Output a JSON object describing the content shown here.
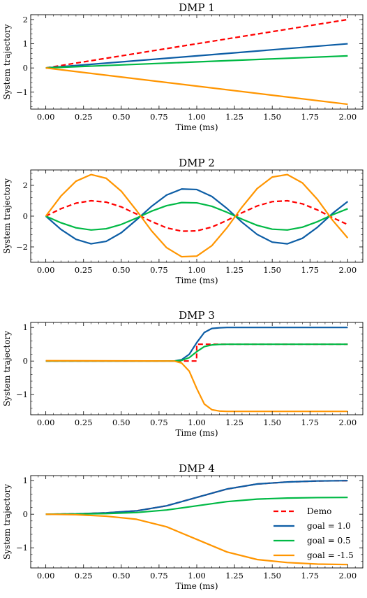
{
  "chart_data": [
    {
      "type": "line",
      "title": "DMP 1",
      "xlabel": "Time (ms)",
      "ylabel": "System trajectory",
      "xlim": [
        -0.1,
        2.1
      ],
      "ylim": [
        -1.7,
        2.2
      ],
      "xticks": [
        "0.00",
        "0.25",
        "0.50",
        "0.75",
        "1.00",
        "1.25",
        "1.50",
        "1.75",
        "2.00"
      ],
      "yticks": [
        "2",
        "1",
        "0",
        "−1"
      ],
      "series": [
        {
          "name": "Demo",
          "color": "#ff0000",
          "dash": true,
          "x": [
            0,
            0.5,
            1.0,
            1.5,
            2.0
          ],
          "y": [
            0,
            0.5,
            1.0,
            1.5,
            2.0
          ]
        },
        {
          "name": "goal = 1.0",
          "color": "#0C5DA5",
          "dash": false,
          "x": [
            0,
            0.5,
            1.0,
            1.5,
            2.0
          ],
          "y": [
            0,
            0.25,
            0.5,
            0.75,
            1.0
          ]
        },
        {
          "name": "goal = 0.5",
          "color": "#00B945",
          "dash": false,
          "x": [
            0,
            0.5,
            1.0,
            1.5,
            2.0
          ],
          "y": [
            0,
            0.125,
            0.25,
            0.375,
            0.5
          ]
        },
        {
          "name": "goal = -1.5",
          "color": "#FF9500",
          "dash": false,
          "x": [
            0,
            0.5,
            1.0,
            1.5,
            2.0
          ],
          "y": [
            0,
            -0.375,
            -0.75,
            -1.125,
            -1.5
          ]
        }
      ]
    },
    {
      "type": "line",
      "title": "DMP 2",
      "xlabel": "Time (ms)",
      "ylabel": "System trajectory",
      "xlim": [
        -0.1,
        2.1
      ],
      "ylim": [
        -3.0,
        3.0
      ],
      "xticks": [
        "0.00",
        "0.25",
        "0.50",
        "0.75",
        "1.00",
        "1.25",
        "1.50",
        "1.75",
        "2.00"
      ],
      "yticks": [
        "2",
        "0",
        "−2"
      ],
      "series": [
        {
          "name": "Demo",
          "color": "#ff0000",
          "dash": true,
          "x": [
            0,
            0.1,
            0.2,
            0.3,
            0.4,
            0.5,
            0.6,
            0.7,
            0.8,
            0.9,
            1.0,
            1.1,
            1.2,
            1.3,
            1.4,
            1.5,
            1.6,
            1.7,
            1.8,
            1.9,
            2.0
          ],
          "y": [
            0,
            0.48,
            0.84,
            1.0,
            0.91,
            0.6,
            0.14,
            -0.35,
            -0.76,
            -0.98,
            -0.96,
            -0.71,
            -0.28,
            0.22,
            0.66,
            0.94,
            1.0,
            0.8,
            0.4,
            -0.1,
            -0.55
          ]
        },
        {
          "name": "goal = 1.0",
          "color": "#0C5DA5",
          "dash": false,
          "x": [
            0,
            0.1,
            0.2,
            0.3,
            0.4,
            0.5,
            0.6,
            0.7,
            0.8,
            0.9,
            1.0,
            1.1,
            1.2,
            1.3,
            1.4,
            1.5,
            1.6,
            1.7,
            1.8,
            1.9,
            2.0
          ],
          "y": [
            0,
            -0.86,
            -1.51,
            -1.8,
            -1.64,
            -1.08,
            -0.25,
            0.63,
            1.37,
            1.76,
            1.73,
            1.28,
            0.5,
            -0.4,
            -1.19,
            -1.69,
            -1.8,
            -1.44,
            -0.72,
            0.18,
            0.95
          ]
        },
        {
          "name": "goal = 0.5",
          "color": "#00B945",
          "dash": false,
          "x": [
            0,
            0.1,
            0.2,
            0.3,
            0.4,
            0.5,
            0.6,
            0.7,
            0.8,
            0.9,
            1.0,
            1.1,
            1.2,
            1.3,
            1.4,
            1.5,
            1.6,
            1.7,
            1.8,
            1.9,
            2.0
          ],
          "y": [
            0,
            -0.43,
            -0.76,
            -0.9,
            -0.82,
            -0.54,
            -0.13,
            0.32,
            0.68,
            0.88,
            0.86,
            0.64,
            0.25,
            -0.2,
            -0.6,
            -0.85,
            -0.9,
            -0.72,
            -0.36,
            0.09,
            0.48
          ]
        },
        {
          "name": "goal = -1.5",
          "color": "#FF9500",
          "dash": false,
          "x": [
            0,
            0.1,
            0.2,
            0.3,
            0.4,
            0.5,
            0.6,
            0.7,
            0.8,
            0.9,
            1.0,
            1.1,
            1.2,
            1.3,
            1.4,
            1.5,
            1.6,
            1.7,
            1.8,
            1.9,
            2.0
          ],
          "y": [
            0,
            1.3,
            2.27,
            2.7,
            2.46,
            1.62,
            0.38,
            -0.95,
            -2.05,
            -2.64,
            -2.6,
            -1.92,
            -0.76,
            0.59,
            1.79,
            2.54,
            2.7,
            2.16,
            1.08,
            -0.27,
            -1.42
          ]
        }
      ]
    },
    {
      "type": "line",
      "title": "DMP 3",
      "xlabel": "Time (ms)",
      "ylabel": "System trajectory",
      "xlim": [
        -0.1,
        2.1
      ],
      "ylim": [
        -1.6,
        1.15
      ],
      "xticks": [
        "0.00",
        "0.25",
        "0.50",
        "0.75",
        "1.00",
        "1.25",
        "1.50",
        "1.75",
        "2.00"
      ],
      "yticks": [
        "1",
        "0",
        "−1"
      ],
      "series": [
        {
          "name": "Demo",
          "color": "#ff0000",
          "dash": true,
          "x": [
            0,
            0.999,
            1.0,
            2.0
          ],
          "y": [
            0,
            0,
            0.5,
            0.5
          ]
        },
        {
          "name": "goal = 1.0",
          "color": "#0C5DA5",
          "dash": false,
          "x": [
            0,
            0.85,
            0.9,
            0.95,
            1.0,
            1.05,
            1.1,
            1.15,
            1.2,
            1.3,
            1.5,
            2.0
          ],
          "y": [
            0,
            0.0,
            0.04,
            0.2,
            0.55,
            0.85,
            0.97,
            0.99,
            1.0,
            1.0,
            1.0,
            1.0
          ]
        },
        {
          "name": "goal = 0.5",
          "color": "#00B945",
          "dash": false,
          "x": [
            0,
            0.85,
            0.9,
            0.95,
            1.0,
            1.05,
            1.1,
            1.15,
            1.2,
            1.3,
            1.5,
            2.0
          ],
          "y": [
            0,
            0.0,
            0.02,
            0.1,
            0.28,
            0.43,
            0.48,
            0.495,
            0.5,
            0.5,
            0.5,
            0.5
          ]
        },
        {
          "name": "goal = -1.5",
          "color": "#FF9500",
          "dash": false,
          "x": [
            0,
            0.85,
            0.9,
            0.95,
            1.0,
            1.05,
            1.1,
            1.15,
            1.2,
            1.3,
            1.5,
            2.0
          ],
          "y": [
            0.01,
            0.0,
            -0.06,
            -0.3,
            -0.82,
            -1.28,
            -1.45,
            -1.49,
            -1.5,
            -1.5,
            -1.5,
            -1.5
          ]
        }
      ]
    },
    {
      "type": "line",
      "title": "DMP 4",
      "xlabel": "Time (ms)",
      "ylabel": "System trajectory",
      "xlim": [
        -0.1,
        2.1
      ],
      "ylim": [
        -1.6,
        1.15
      ],
      "xticks": [
        "0.00",
        "0.25",
        "0.50",
        "0.75",
        "1.00",
        "1.25",
        "1.50",
        "1.75",
        "2.00"
      ],
      "yticks": [
        "1",
        "0",
        "−1"
      ],
      "legend": "lower right",
      "series": [
        {
          "name": "Demo",
          "color": "#ff0000",
          "dash": true,
          "x": [
            0,
            0.2,
            0.4,
            0.6,
            0.8,
            1.0,
            1.2,
            1.4,
            1.6,
            1.8,
            2.0
          ],
          "y": [
            0,
            0.01,
            0.04,
            0.1,
            0.25,
            0.5,
            0.75,
            0.9,
            0.96,
            0.99,
            1.0
          ]
        },
        {
          "name": "goal = 1.0",
          "color": "#0C5DA5",
          "dash": false,
          "x": [
            0,
            0.2,
            0.4,
            0.6,
            0.8,
            1.0,
            1.2,
            1.4,
            1.6,
            1.8,
            2.0
          ],
          "y": [
            0,
            0.01,
            0.04,
            0.1,
            0.25,
            0.5,
            0.75,
            0.9,
            0.96,
            0.99,
            1.0
          ]
        },
        {
          "name": "goal = 0.5",
          "color": "#00B945",
          "dash": false,
          "x": [
            0,
            0.2,
            0.4,
            0.6,
            0.8,
            1.0,
            1.2,
            1.4,
            1.6,
            1.8,
            2.0
          ],
          "y": [
            0,
            0.005,
            0.02,
            0.05,
            0.125,
            0.25,
            0.375,
            0.45,
            0.48,
            0.495,
            0.5
          ]
        },
        {
          "name": "goal = -1.5",
          "color": "#FF9500",
          "dash": false,
          "x": [
            0,
            0.2,
            0.4,
            0.6,
            0.8,
            1.0,
            1.2,
            1.4,
            1.6,
            1.8,
            2.0
          ],
          "y": [
            0,
            -0.015,
            -0.06,
            -0.15,
            -0.375,
            -0.75,
            -1.125,
            -1.35,
            -1.44,
            -1.485,
            -1.5
          ]
        }
      ]
    }
  ]
}
